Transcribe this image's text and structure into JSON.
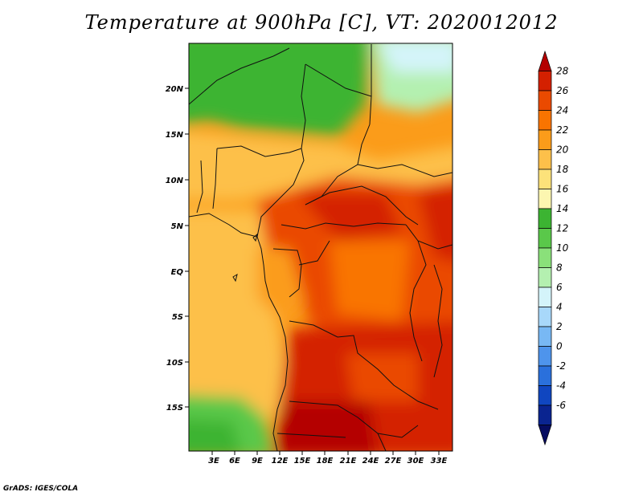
{
  "title": "Temperature at 900hPa [C], VT: 2020012012",
  "credit": "GrADS: IGES/COLA",
  "map": {
    "lat_ticks": [
      "20N",
      "15N",
      "10N",
      "5N",
      "EQ",
      "5S",
      "10S",
      "15S"
    ],
    "lon_ticks": [
      "3E",
      "6E",
      "9E",
      "12E",
      "15E",
      "18E",
      "21E",
      "24E",
      "27E",
      "30E",
      "33E"
    ]
  },
  "colorbar": {
    "labels": [
      "28",
      "26",
      "24",
      "22",
      "20",
      "18",
      "16",
      "14",
      "12",
      "10",
      "8",
      "6",
      "4",
      "2",
      "0",
      "-2",
      "-4",
      "-6"
    ],
    "colors": [
      "#b40000",
      "#d42000",
      "#ea4a00",
      "#f97400",
      "#fb9c1a",
      "#fdc04a",
      "#fce27a",
      "#fcf6b0",
      "#3cb432",
      "#5ac84a",
      "#8ae07a",
      "#b4f0b0",
      "#d4f4fa",
      "#a8d8fa",
      "#78b8f4",
      "#4e94ec",
      "#2a70dc",
      "#1046c0",
      "#0a2490",
      "#060c60"
    ]
  }
}
